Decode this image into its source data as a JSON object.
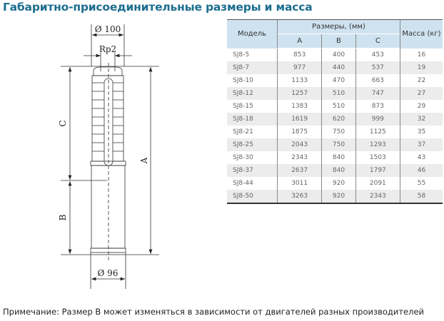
{
  "title": "Габаритно-присоединительные размеры и масса",
  "drawing": {
    "dim_top_diameter": "Ø 100",
    "dim_thread": "Rp2",
    "dim_bottom_diameter": "Ø 96",
    "label_a": "A",
    "label_b": "B",
    "label_c": "C"
  },
  "table": {
    "header_model": "Модель",
    "header_dimensions": "Размеры, (мм)",
    "header_a": "A",
    "header_b": "B",
    "header_c": "C",
    "header_mass": "Масса (кг)",
    "rows": [
      {
        "model": "SJ8-5",
        "a": "853",
        "b": "400",
        "c": "453",
        "mass": "16"
      },
      {
        "model": "SJ8-7",
        "a": "977",
        "b": "440",
        "c": "537",
        "mass": "19"
      },
      {
        "model": "SJ8-10",
        "a": "1133",
        "b": "470",
        "c": "663",
        "mass": "22"
      },
      {
        "model": "SJ8-12",
        "a": "1257",
        "b": "510",
        "c": "747",
        "mass": "27"
      },
      {
        "model": "SJ8-15",
        "a": "1383",
        "b": "510",
        "c": "873",
        "mass": "29"
      },
      {
        "model": "SJ8-18",
        "a": "1619",
        "b": "620",
        "c": "999",
        "mass": "32"
      },
      {
        "model": "SJ8-21",
        "a": "1875",
        "b": "750",
        "c": "1125",
        "mass": "35"
      },
      {
        "model": "SJ8-25",
        "a": "2043",
        "b": "750",
        "c": "1293",
        "mass": "37"
      },
      {
        "model": "SJ8-30",
        "a": "2343",
        "b": "840",
        "c": "1503",
        "mass": "43"
      },
      {
        "model": "SJ8-37",
        "a": "2637",
        "b": "840",
        "c": "1797",
        "mass": "46"
      },
      {
        "model": "SJ8-44",
        "a": "3011",
        "b": "920",
        "c": "2091",
        "mass": "55"
      },
      {
        "model": "SJ8-50",
        "a": "3263",
        "b": "920",
        "c": "2343",
        "mass": "58"
      }
    ]
  },
  "note": "Примечание: Размер B может изменяться в зависимости от двигателей разных производителей",
  "colors": {
    "title": "#1d6e8f",
    "header_bg": "#cfe2ef",
    "alt_row_bg": "#ececec"
  }
}
